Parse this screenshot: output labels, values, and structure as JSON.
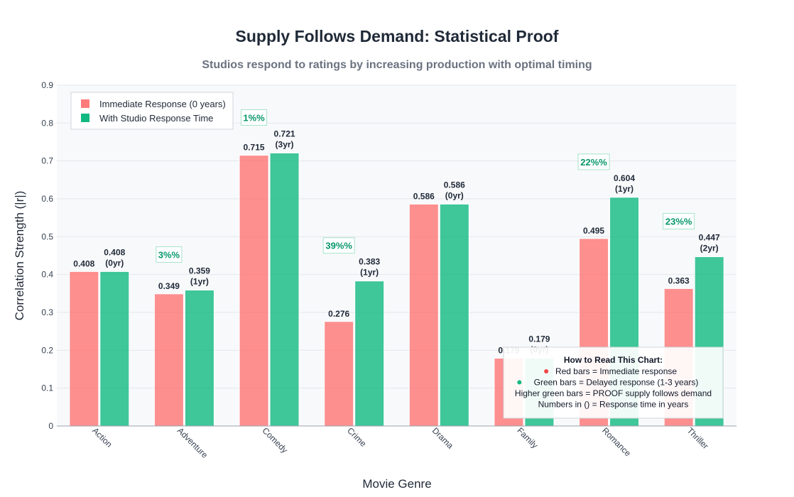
{
  "chart_data": {
    "type": "bar",
    "title": "Supply Follows Demand: Statistical Proof",
    "subtitle": "Studios respond to ratings by increasing production with optimal timing",
    "xlabel": "Movie Genre",
    "ylabel": "Correlation Strength (|r|)",
    "ylim": [
      0,
      0.9
    ],
    "yticks": [
      "0",
      "0.1",
      "0.2",
      "0.3",
      "0.4",
      "0.5",
      "0.6",
      "0.7",
      "0.8",
      "0.9"
    ],
    "grid": true,
    "legend_position": "top-left",
    "categories": [
      "Action",
      "Adventure",
      "Comedy",
      "Crime",
      "Drama",
      "Family",
      "Romance",
      "Thriller"
    ],
    "series": [
      {
        "name": "Immediate Response (0 years)",
        "color": "#ff6b6b",
        "values": [
          0.408,
          0.349,
          0.715,
          0.276,
          0.586,
          0.179,
          0.495,
          0.363
        ],
        "labels": [
          "0.408",
          "0.349",
          "0.715",
          "0.276",
          "0.586",
          "0.179",
          "0.495",
          "0.363"
        ]
      },
      {
        "name": "With Studio Response Time",
        "color": "#10b981",
        "values": [
          0.408,
          0.359,
          0.721,
          0.383,
          0.586,
          0.179,
          0.604,
          0.447
        ],
        "labels": [
          "0.408",
          "0.359",
          "0.721",
          "0.383",
          "0.586",
          "0.179",
          "0.604",
          "0.447"
        ],
        "lag_labels": [
          "(0yr)",
          "(1yr)",
          "(3yr)",
          "(1yr)",
          "(0yr)",
          "(0yr)",
          "(1yr)",
          "(2yr)"
        ]
      }
    ],
    "improvement_annotations": [
      {
        "category": "Adventure",
        "text": "3%%"
      },
      {
        "category": "Comedy",
        "text": "1%%"
      },
      {
        "category": "Crime",
        "text": "39%%"
      },
      {
        "category": "Romance",
        "text": "22%%"
      },
      {
        "category": "Thriller",
        "text": "23%%"
      }
    ],
    "note": {
      "title": "How to Read This Chart:",
      "lines": [
        "Red bars = Immediate response",
        "Green bars = Delayed response (1-3 years)",
        "Higher green bars = PROOF supply follows demand",
        "Numbers in () = Response time in years"
      ],
      "bullet_colors": [
        "#ef4444",
        "#10b981"
      ]
    }
  }
}
